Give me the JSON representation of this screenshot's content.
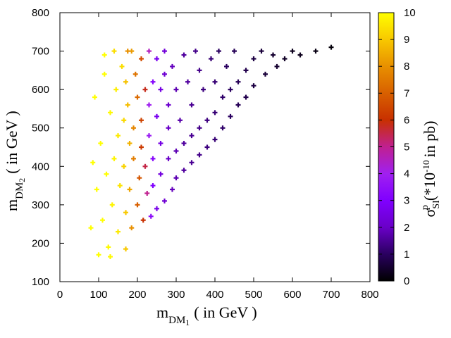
{
  "chart_data": {
    "type": "scatter",
    "title": "",
    "xlabel": {
      "main": "m",
      "sub": "DM",
      "subsub": "1",
      "rest": "( in GeV )"
    },
    "ylabel": {
      "main": "m",
      "sub": "DM",
      "subsub": "2",
      "rest": "( in GeV )"
    },
    "colorbar_label": {
      "sigma": "σ",
      "sub": "SI",
      "sup": "p",
      "rest": "(*10",
      "exp": "-10",
      "unit": "in pb)"
    },
    "xlim": [
      0,
      800
    ],
    "ylim": [
      100,
      800
    ],
    "xticks": [
      0,
      100,
      200,
      300,
      400,
      500,
      600,
      700,
      800
    ],
    "yticks": [
      100,
      200,
      300,
      400,
      500,
      600,
      700,
      800
    ],
    "color_range": [
      0,
      10
    ],
    "colorbar_ticks": [
      0,
      1,
      2,
      3,
      4,
      5,
      6,
      7,
      8,
      9,
      10
    ],
    "colormap": [
      "#000000",
      "#2a0060",
      "#6a00c8",
      "#8000ff",
      "#a020f0",
      "#c02090",
      "#c83000",
      "#d86000",
      "#e89000",
      "#f8c800",
      "#ffff00"
    ],
    "grid": false,
    "legend": "none",
    "series": [
      {
        "name": "scan points",
        "marker": "plus",
        "points": [
          [
            700,
            710,
            0.1
          ],
          [
            660,
            700,
            0.2
          ],
          [
            620,
            690,
            0.3
          ],
          [
            600,
            700,
            0.3
          ],
          [
            580,
            680,
            0.4
          ],
          [
            560,
            660,
            0.5
          ],
          [
            550,
            690,
            0.5
          ],
          [
            530,
            640,
            0.6
          ],
          [
            520,
            700,
            0.6
          ],
          [
            500,
            610,
            0.7
          ],
          [
            500,
            680,
            0.7
          ],
          [
            480,
            580,
            0.8
          ],
          [
            480,
            650,
            0.8
          ],
          [
            460,
            560,
            0.9
          ],
          [
            460,
            620,
            0.9
          ],
          [
            450,
            700,
            0.9
          ],
          [
            440,
            530,
            1.0
          ],
          [
            440,
            600,
            1.0
          ],
          [
            430,
            660,
            1.0
          ],
          [
            420,
            500,
            1.1
          ],
          [
            420,
            580,
            1.1
          ],
          [
            410,
            700,
            1.0
          ],
          [
            400,
            470,
            1.2
          ],
          [
            400,
            540,
            1.2
          ],
          [
            400,
            620,
            1.2
          ],
          [
            390,
            680,
            1.2
          ],
          [
            380,
            450,
            1.3
          ],
          [
            380,
            520,
            1.3
          ],
          [
            370,
            600,
            1.3
          ],
          [
            360,
            430,
            1.4
          ],
          [
            360,
            500,
            1.4
          ],
          [
            360,
            650,
            1.4
          ],
          [
            350,
            700,
            1.4
          ],
          [
            340,
            410,
            1.5
          ],
          [
            340,
            480,
            1.5
          ],
          [
            340,
            560,
            1.5
          ],
          [
            330,
            620,
            1.6
          ],
          [
            320,
            390,
            1.6
          ],
          [
            320,
            460,
            1.6
          ],
          [
            320,
            690,
            1.6
          ],
          [
            310,
            520,
            1.7
          ],
          [
            300,
            370,
            1.8
          ],
          [
            300,
            440,
            1.8
          ],
          [
            300,
            600,
            1.8
          ],
          [
            290,
            660,
            1.9
          ],
          [
            290,
            340,
            1.9
          ],
          [
            280,
            420,
            2.0
          ],
          [
            280,
            500,
            2.0
          ],
          [
            280,
            560,
            2.1
          ],
          [
            270,
            310,
            2.2
          ],
          [
            270,
            640,
            2.2
          ],
          [
            270,
            700,
            2.3
          ],
          [
            260,
            380,
            2.4
          ],
          [
            260,
            460,
            2.5
          ],
          [
            260,
            600,
            2.5
          ],
          [
            250,
            290,
            2.6
          ],
          [
            250,
            530,
            2.7
          ],
          [
            250,
            680,
            2.7
          ],
          [
            240,
            350,
            3.0
          ],
          [
            240,
            420,
            3.2
          ],
          [
            240,
            620,
            3.2
          ],
          [
            235,
            270,
            3.4
          ],
          [
            230,
            480,
            3.8
          ],
          [
            230,
            560,
            4.0
          ],
          [
            230,
            700,
            4.5
          ],
          [
            225,
            330,
            5.0
          ],
          [
            220,
            400,
            5.5
          ],
          [
            220,
            600,
            5.8
          ],
          [
            215,
            260,
            6.0
          ],
          [
            210,
            450,
            6.2
          ],
          [
            210,
            520,
            6.4
          ],
          [
            210,
            680,
            6.6
          ],
          [
            205,
            370,
            6.8
          ],
          [
            200,
            300,
            7.0
          ],
          [
            200,
            580,
            7.2
          ],
          [
            195,
            640,
            7.4
          ],
          [
            190,
            420,
            7.6
          ],
          [
            190,
            500,
            7.8
          ],
          [
            185,
            240,
            8.0
          ],
          [
            185,
            700,
            8.2
          ],
          [
            180,
            340,
            8.4
          ],
          [
            180,
            460,
            8.6
          ],
          [
            175,
            560,
            8.8
          ],
          [
            170,
            620,
            8.9
          ],
          [
            170,
            280,
            9.0
          ],
          [
            165,
            400,
            9.2
          ],
          [
            165,
            520,
            9.3
          ],
          [
            160,
            660,
            9.4
          ],
          [
            155,
            350,
            9.5
          ],
          [
            150,
            230,
            9.6
          ],
          [
            150,
            480,
            9.6
          ],
          [
            145,
            600,
            9.7
          ],
          [
            140,
            420,
            9.8
          ],
          [
            135,
            300,
            9.8
          ],
          [
            130,
            540,
            9.9
          ],
          [
            125,
            190,
            9.9
          ],
          [
            120,
            380,
            10.0
          ],
          [
            115,
            640,
            10.0
          ],
          [
            110,
            260,
            10.0
          ],
          [
            105,
            460,
            10.0
          ],
          [
            100,
            170,
            10.0
          ],
          [
            95,
            340,
            10.0
          ],
          [
            90,
            580,
            10.0
          ],
          [
            85,
            410,
            10.0
          ],
          [
            80,
            240,
            10.0
          ],
          [
            130,
            165,
            9.9
          ],
          [
            170,
            185,
            9.0
          ],
          [
            115,
            690,
            10.0
          ],
          [
            140,
            700,
            9.4
          ],
          [
            175,
            700,
            8.0
          ]
        ]
      }
    ]
  }
}
